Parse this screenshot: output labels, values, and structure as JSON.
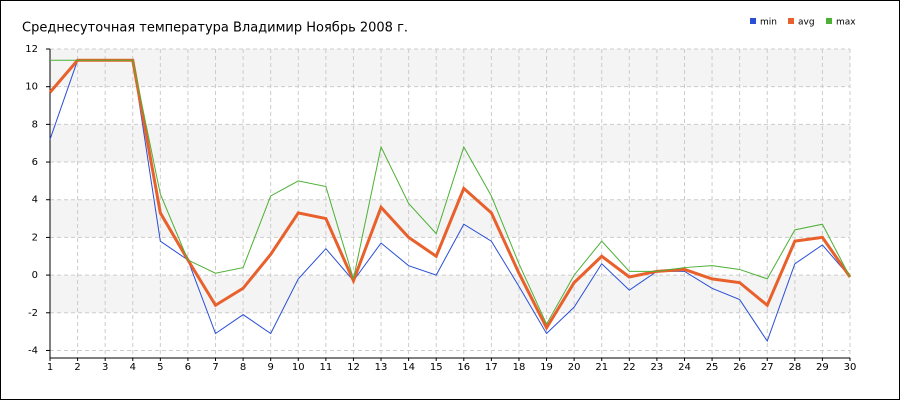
{
  "chart_data": {
    "type": "line",
    "title": "Среднесуточная температура Владимир  Ноябрь 2008 г.",
    "x": [
      1,
      2,
      3,
      4,
      5,
      6,
      7,
      8,
      9,
      10,
      11,
      12,
      13,
      14,
      15,
      16,
      17,
      18,
      19,
      20,
      21,
      22,
      23,
      24,
      25,
      26,
      27,
      28,
      29,
      30
    ],
    "series": [
      {
        "name": "min",
        "color": "#2a4fd6",
        "values": [
          7.2,
          11.4,
          11.4,
          11.4,
          1.8,
          0.8,
          -3.1,
          -2.1,
          -3.1,
          -0.2,
          1.4,
          -0.3,
          1.7,
          0.5,
          0.0,
          2.7,
          1.8,
          -0.6,
          -3.1,
          -1.7,
          0.6,
          -0.8,
          0.2,
          0.2,
          -0.7,
          -1.3,
          -3.5,
          0.6,
          1.6,
          -0.1
        ]
      },
      {
        "name": "avg",
        "color": "#e8602c",
        "values": [
          9.7,
          11.4,
          11.4,
          11.4,
          3.3,
          0.8,
          -1.6,
          -0.7,
          1.1,
          3.3,
          3.0,
          -0.3,
          3.6,
          2.0,
          1.0,
          4.6,
          3.3,
          0.1,
          -2.8,
          -0.4,
          1.0,
          -0.1,
          0.2,
          0.3,
          -0.2,
          -0.4,
          -1.6,
          1.8,
          2.0,
          -0.1
        ]
      },
      {
        "name": "max",
        "color": "#4cb034",
        "values": [
          11.4,
          11.4,
          11.4,
          11.4,
          4.3,
          0.8,
          0.1,
          0.4,
          4.2,
          5.0,
          4.7,
          -0.2,
          6.8,
          3.8,
          2.2,
          6.8,
          4.2,
          0.6,
          -2.6,
          0.0,
          1.8,
          0.2,
          0.2,
          0.4,
          0.5,
          0.3,
          -0.2,
          2.4,
          2.7,
          -0.1
        ]
      }
    ],
    "xlim": [
      1,
      30
    ],
    "xticks": [
      1,
      2,
      3,
      4,
      5,
      6,
      7,
      8,
      9,
      10,
      11,
      12,
      13,
      14,
      15,
      16,
      17,
      18,
      19,
      20,
      21,
      22,
      23,
      24,
      25,
      26,
      27,
      28,
      29,
      30
    ],
    "ylim": [
      -4.4,
      12
    ],
    "yticks": [
      -4,
      -2,
      0,
      2,
      4,
      6,
      8,
      10,
      12
    ],
    "grid": true,
    "legend": "top-right"
  }
}
